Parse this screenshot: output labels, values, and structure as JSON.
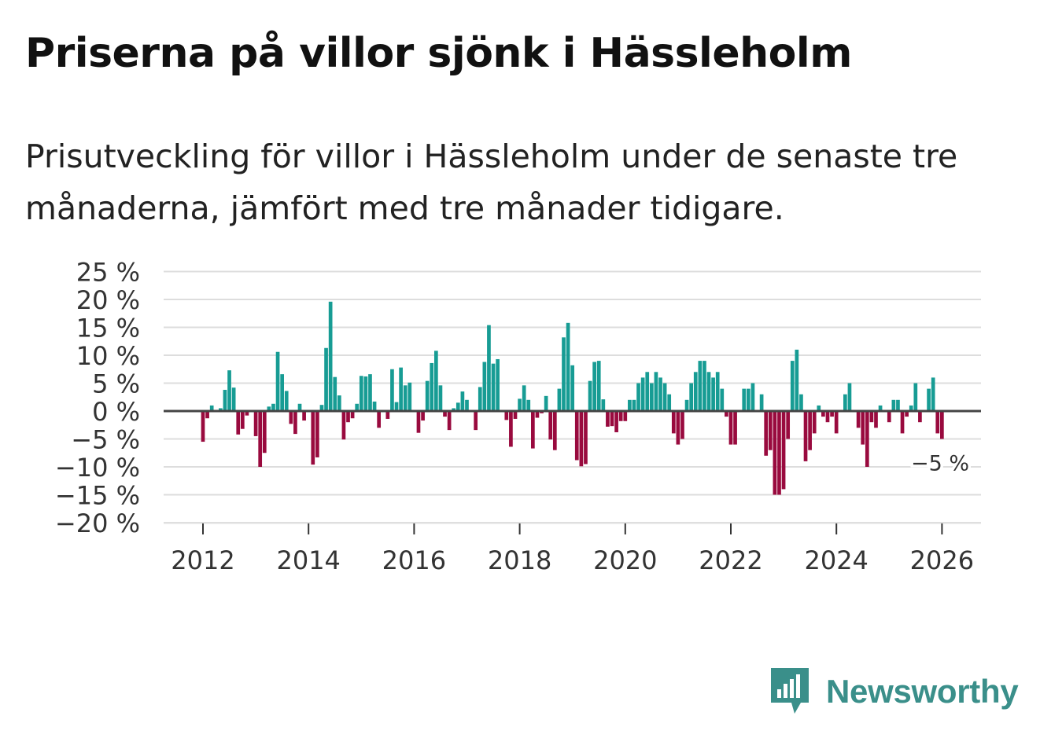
{
  "header": {
    "title": "Priserna på villor sjönk i Hässleholm",
    "subtitle": "Prisutveckling för villor i Hässleholm under de senaste tre månaderna, jämfört med tre månader tidigare."
  },
  "brand": {
    "name": "Newsworthy",
    "icon": "bar-chart-speech-icon",
    "color": "#3a8f8a"
  },
  "colors": {
    "positive": "#179c94",
    "negative": "#990a3e",
    "grid": "#dddddd",
    "zero": "#444444"
  },
  "chart_data": {
    "type": "bar",
    "title": "Priserna på villor sjönk i Hässleholm",
    "xlabel": "",
    "ylabel": "",
    "ylim": [
      -20,
      25
    ],
    "y_ticks": [
      25,
      20,
      15,
      10,
      5,
      0,
      -5,
      -10,
      -15,
      -20
    ],
    "y_tick_labels": [
      "25 %",
      "20 %",
      "15 %",
      "10 %",
      "5 %",
      "0 %",
      "−5 %",
      "−10 %",
      "−15 %",
      "−20 %"
    ],
    "x_ticks": [
      2012,
      2014,
      2016,
      2018,
      2020,
      2022,
      2024,
      2026
    ],
    "x_tick_labels": [
      "2012",
      "2014",
      "2016",
      "2018",
      "2020",
      "2022",
      "2024",
      "2026"
    ],
    "start": 2012.0,
    "step": 0.08333,
    "values": [
      -5.5,
      -1.3,
      1.0,
      0.2,
      0.5,
      3.8,
      7.3,
      4.2,
      -4.2,
      -3.2,
      -0.8,
      0.0,
      -4.5,
      -10.0,
      -7.5,
      0.8,
      1.3,
      10.6,
      6.6,
      3.6,
      -2.3,
      -4.1,
      1.3,
      -1.7,
      0.0,
      -9.6,
      -8.3,
      1.1,
      11.3,
      19.6,
      6.1,
      2.8,
      -5.1,
      -2.0,
      -1.3,
      1.3,
      6.3,
      6.2,
      6.6,
      1.7,
      -3.0,
      0.0,
      -1.4,
      7.5,
      1.6,
      7.8,
      4.6,
      5.1,
      0.0,
      -3.9,
      -1.7,
      5.4,
      8.6,
      10.8,
      4.6,
      -1.0,
      -3.4,
      0.5,
      1.5,
      3.5,
      2.0,
      0.0,
      -3.4,
      4.3,
      8.8,
      15.4,
      8.5,
      9.3,
      0.0,
      -1.6,
      -6.4,
      -1.4,
      2.2,
      4.6,
      2.0,
      -6.7,
      -1.2,
      -0.4,
      2.7,
      -5.1,
      -7.0,
      4.0,
      13.2,
      15.8,
      8.2,
      -8.8,
      -9.9,
      -9.5,
      5.4,
      8.8,
      9.0,
      2.1,
      -2.8,
      -2.7,
      -3.8,
      -1.8,
      -1.8,
      2.0,
      2.0,
      5.0,
      6.0,
      7.0,
      5.0,
      7.0,
      6.0,
      5.0,
      3.0,
      -4.0,
      -6.0,
      -5.0,
      2.0,
      5.0,
      7.0,
      9.0,
      9.0,
      7.0,
      6.0,
      7.0,
      4.0,
      -1.0,
      -6.0,
      -6.0,
      0.0,
      4.0,
      4.0,
      5.0,
      0.0,
      3.0,
      -8.0,
      -7.0,
      -15.0,
      -15.0,
      -14.0,
      -5.0,
      9.0,
      11.0,
      3.0,
      -9.0,
      -7.0,
      -4.0,
      1.0,
      -1.0,
      -2.0,
      -1.0,
      -4.0,
      0.0,
      3.0,
      5.0,
      0.0,
      -3.0,
      -6.0,
      -10.0,
      -2.0,
      -3.0,
      1.0,
      0.0,
      -2.0,
      2.0,
      2.0,
      -4.0,
      -1.0,
      1.0,
      5.0,
      -2.0,
      0.0,
      4.0,
      6.0,
      -4.0,
      -5.0
    ],
    "annotation": {
      "text": "−5 %",
      "value": -5
    }
  }
}
